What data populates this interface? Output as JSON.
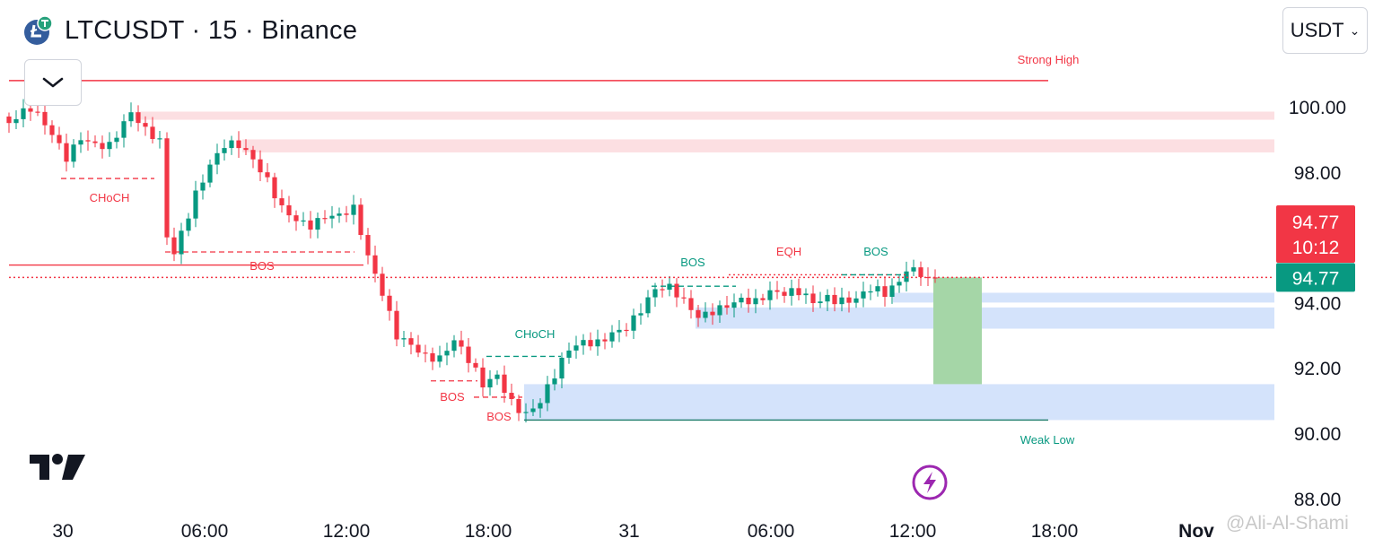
{
  "header": {
    "title": "LTCUSDT · 15 · Binance",
    "currency": "USDT",
    "coin_icon": "litecoin-tether-icon"
  },
  "watermark": "@Ali-Al-Shami",
  "colors": {
    "up": "#089981",
    "down": "#f23645",
    "zone_red": "#fcdfe2",
    "zone_blue": "#d4e3fb",
    "target_green": "#a5d6a7",
    "purple": "#9c27b0"
  },
  "chart_data": {
    "type": "candlestick",
    "y_axis": {
      "ticks": [
        "100.00",
        "98.00",
        "94.00",
        "92.00",
        "90.00",
        "88.00"
      ],
      "ylim": [
        87.0,
        102.5
      ]
    },
    "x_axis": {
      "ticks": [
        "30",
        "06:00",
        "12:00",
        "18:00",
        "31",
        "06:00",
        "12:00",
        "18:00",
        "Nov"
      ]
    },
    "last_price": "94.77",
    "countdown": "10:12",
    "current_price_label": "94.77",
    "close_path": [
      [
        0,
        99.5
      ],
      [
        3,
        99.7
      ],
      [
        6,
        99.0
      ],
      [
        8,
        98.5
      ],
      [
        10,
        99.3
      ],
      [
        14,
        98.9
      ],
      [
        17,
        99.6
      ],
      [
        19,
        99.0
      ],
      [
        21,
        98.8
      ],
      [
        22,
        96.0
      ],
      [
        23,
        95.6
      ],
      [
        24,
        96.3
      ],
      [
        26,
        97.6
      ],
      [
        28,
        98.4
      ],
      [
        30,
        98.8
      ],
      [
        32,
        98.6
      ],
      [
        34,
        98.1
      ],
      [
        36,
        97.6
      ],
      [
        38,
        97.0
      ],
      [
        40,
        96.8
      ],
      [
        42,
        96.6
      ],
      [
        44,
        96.7
      ],
      [
        46,
        96.5
      ],
      [
        48,
        96.6
      ],
      [
        50,
        95.2
      ],
      [
        52,
        94.3
      ],
      [
        54,
        93.2
      ],
      [
        56,
        93.0
      ],
      [
        58,
        92.5
      ],
      [
        60,
        92.2
      ],
      [
        62,
        92.6
      ],
      [
        64,
        92.0
      ],
      [
        66,
        91.4
      ],
      [
        68,
        91.9
      ],
      [
        70,
        91.2
      ],
      [
        72,
        90.8
      ],
      [
        74,
        91.0
      ],
      [
        76,
        91.6
      ],
      [
        78,
        92.3
      ],
      [
        80,
        92.6
      ],
      [
        82,
        92.8
      ],
      [
        84,
        93.3
      ],
      [
        86,
        93.5
      ],
      [
        88,
        93.9
      ],
      [
        90,
        94.3
      ],
      [
        92,
        94.2
      ],
      [
        94,
        93.8
      ],
      [
        96,
        93.5
      ],
      [
        98,
        93.9
      ],
      [
        100,
        94.2
      ],
      [
        102,
        94.3
      ],
      [
        104,
        94.0
      ],
      [
        106,
        94.1
      ],
      [
        108,
        94.0
      ],
      [
        110,
        94.2
      ],
      [
        112,
        94.1
      ],
      [
        114,
        94.4
      ],
      [
        116,
        94.3
      ],
      [
        118,
        94.2
      ],
      [
        120,
        94.3
      ],
      [
        122,
        94.0
      ],
      [
        124,
        94.4
      ],
      [
        125,
        94.9
      ],
      [
        127,
        95.0
      ],
      [
        129,
        94.77
      ]
    ],
    "annotations": [
      {
        "text": "Strong High",
        "color": "#f23645"
      },
      {
        "text": "CHoCH",
        "color": "#f23645"
      },
      {
        "text": "BOS",
        "color": "#f23645"
      },
      {
        "text": "BOS",
        "color": "#f23645"
      },
      {
        "text": "BOS",
        "color": "#f23645"
      },
      {
        "text": "CHoCH",
        "color": "#089981"
      },
      {
        "text": "BOS",
        "color": "#089981"
      },
      {
        "text": "EQH",
        "color": "#f23645"
      },
      {
        "text": "BOS",
        "color": "#089981"
      },
      {
        "text": "Weak Low",
        "color": "#089981"
      }
    ],
    "levels": [
      {
        "name": "Strong High",
        "price": 100.8
      },
      {
        "name": "Weak Low",
        "price": 90.4
      },
      {
        "name": "Last price",
        "price": 94.77
      }
    ],
    "zones": [
      {
        "kind": "supply",
        "from": 99.6,
        "to": 99.85
      },
      {
        "kind": "supply",
        "from": 98.6,
        "to": 99.0
      },
      {
        "kind": "demand",
        "from": 94.0,
        "to": 94.3
      },
      {
        "kind": "demand",
        "from": 93.2,
        "to": 93.85
      },
      {
        "kind": "demand",
        "from": 90.4,
        "to": 91.5
      }
    ],
    "target": {
      "from": 91.5,
      "to": 94.77
    }
  }
}
